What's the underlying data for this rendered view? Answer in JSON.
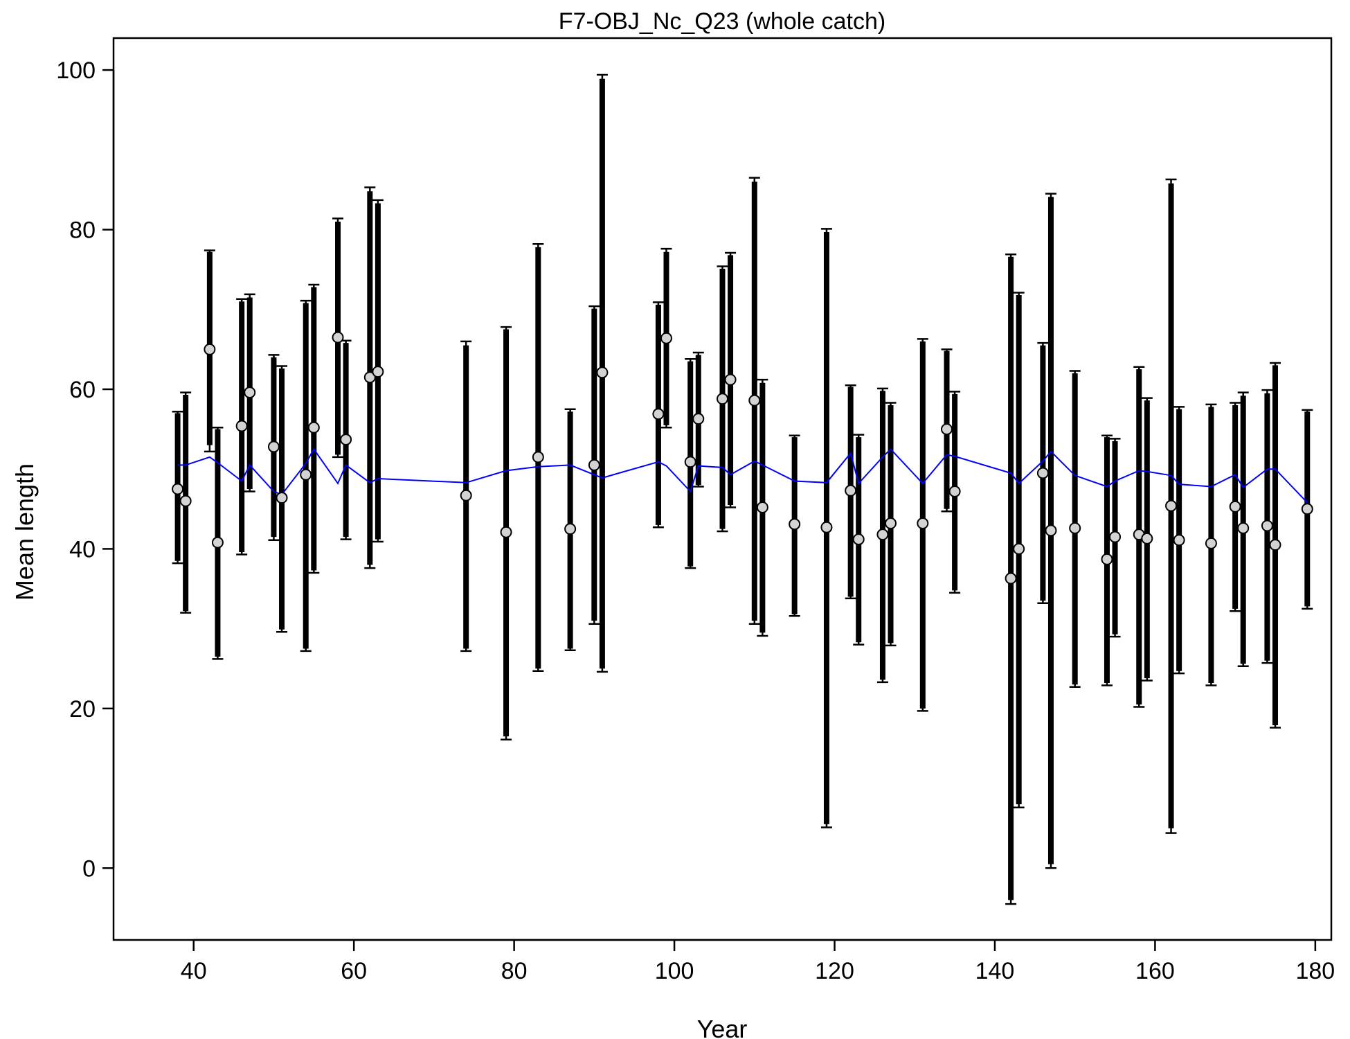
{
  "chart_data": {
    "type": "scatter",
    "title": "F7-OBJ_Nc_Q23 (whole catch)",
    "xlabel": "Year",
    "ylabel": "Mean length",
    "xlim": [
      30,
      182
    ],
    "ylim": [
      -9,
      104
    ],
    "x_ticks": [
      40,
      60,
      80,
      100,
      120,
      140,
      160,
      180
    ],
    "y_ticks": [
      0,
      20,
      40,
      60,
      80,
      100
    ],
    "grid": false,
    "colors": {
      "expected_line": "#0000ff",
      "observed_fill": "#d3d3d3",
      "observed_stroke": "#000000",
      "interval_bar": "#000000"
    },
    "series": [
      {
        "kind": "observed",
        "x": [
          38,
          39,
          42,
          43,
          46,
          47,
          50,
          51,
          54,
          55,
          58,
          59,
          62,
          63,
          74,
          79,
          83,
          87,
          90,
          91,
          98,
          99,
          102,
          103,
          106,
          107,
          110,
          111,
          115,
          119,
          122,
          123,
          126,
          127,
          131,
          134,
          135,
          142,
          143,
          146,
          147,
          150,
          154,
          155,
          158,
          159,
          162,
          163,
          167,
          170,
          171,
          174,
          175,
          179
        ],
        "y": [
          47.5,
          46,
          65,
          40.8,
          55.4,
          59.6,
          52.8,
          46.4,
          49.3,
          55.2,
          66.5,
          53.7,
          61.5,
          62.2,
          46.7,
          42.1,
          51.5,
          42.5,
          50.5,
          62.1,
          56.9,
          66.4,
          50.9,
          56.3,
          58.8,
          61.2,
          58.6,
          45.2,
          43.1,
          42.7,
          47.3,
          41.2,
          41.8,
          43.2,
          43.2,
          55,
          47.2,
          36.3,
          40,
          49.5,
          42.3,
          42.6,
          38.7,
          41.5,
          41.8,
          41.3,
          45.4,
          41.1,
          40.7,
          45.3,
          42.6,
          42.9,
          40.5,
          45
        ],
        "ci_inner": [
          [
            38.5,
            57
          ],
          [
            32.2,
            59.3
          ],
          [
            53,
            77.2
          ],
          [
            26.5,
            55
          ],
          [
            39.6,
            71
          ],
          [
            47.5,
            71.5
          ],
          [
            41.5,
            64
          ],
          [
            29.9,
            62.6
          ],
          [
            27.5,
            70.8
          ],
          [
            37.3,
            72.8
          ],
          [
            51.8,
            81
          ],
          [
            41.5,
            65.8
          ],
          [
            38,
            84.8
          ],
          [
            41.2,
            83.3
          ],
          [
            27.5,
            65.5
          ],
          [
            16.5,
            67.5
          ],
          [
            25,
            77.8
          ],
          [
            27.5,
            57.2
          ],
          [
            31,
            70.1
          ],
          [
            25,
            98.9
          ],
          [
            43,
            70.6
          ],
          [
            55.5,
            77.2
          ],
          [
            37.8,
            63.5
          ],
          [
            48,
            64.3
          ],
          [
            42.5,
            75.1
          ],
          [
            45.5,
            76.8
          ],
          [
            31,
            86
          ],
          [
            29.5,
            60.8
          ],
          [
            31.8,
            54
          ],
          [
            5.5,
            79.7
          ],
          [
            34,
            60.3
          ],
          [
            28.3,
            54
          ],
          [
            23.6,
            59.8
          ],
          [
            28.2,
            58
          ],
          [
            20,
            66
          ],
          [
            45,
            64.8
          ],
          [
            34.8,
            59.4
          ],
          [
            -4,
            76.6
          ],
          [
            8,
            71.8
          ],
          [
            33.5,
            65.5
          ],
          [
            0.5,
            84.1
          ],
          [
            23,
            62
          ],
          [
            23.2,
            54
          ],
          [
            29.3,
            53.5
          ],
          [
            20.5,
            62.5
          ],
          [
            23.8,
            58.6
          ],
          [
            5,
            85.8
          ],
          [
            24.7,
            57.5
          ],
          [
            23.2,
            57.8
          ],
          [
            32.5,
            58
          ],
          [
            25.6,
            59.2
          ],
          [
            26,
            59.5
          ],
          [
            17.9,
            63
          ],
          [
            32.8,
            57.2
          ]
        ],
        "ci_outer": [
          [
            38.2,
            57.2
          ],
          [
            32,
            59.6
          ],
          [
            52.2,
            77.4
          ],
          [
            26.2,
            55.2
          ],
          [
            39.3,
            71.3
          ],
          [
            47.2,
            71.9
          ],
          [
            41.1,
            64.3
          ],
          [
            29.6,
            62.9
          ],
          [
            27.2,
            71.1
          ],
          [
            37,
            73.1
          ],
          [
            51.5,
            81.4
          ],
          [
            41.2,
            66.1
          ],
          [
            37.6,
            85.3
          ],
          [
            40.9,
            83.7
          ],
          [
            27.2,
            66
          ],
          [
            16.1,
            67.8
          ],
          [
            24.7,
            78.2
          ],
          [
            27.3,
            57.5
          ],
          [
            30.6,
            70.4
          ],
          [
            24.6,
            99.4
          ],
          [
            42.7,
            70.9
          ],
          [
            55.2,
            77.6
          ],
          [
            37.6,
            63.8
          ],
          [
            47.8,
            64.6
          ],
          [
            42.2,
            75.4
          ],
          [
            45.2,
            77.1
          ],
          [
            30.6,
            86.5
          ],
          [
            29.1,
            61.2
          ],
          [
            31.6,
            54.2
          ],
          [
            5.1,
            80.1
          ],
          [
            33.8,
            60.5
          ],
          [
            28,
            54.3
          ],
          [
            23.3,
            60.1
          ],
          [
            27.9,
            58.3
          ],
          [
            19.7,
            66.3
          ],
          [
            44.7,
            65
          ],
          [
            34.5,
            59.7
          ],
          [
            -4.5,
            76.9
          ],
          [
            7.6,
            72.1
          ],
          [
            33.2,
            65.8
          ],
          [
            0,
            84.5
          ],
          [
            22.7,
            62.3
          ],
          [
            22.9,
            54.2
          ],
          [
            29,
            53.8
          ],
          [
            20.2,
            62.8
          ],
          [
            23.5,
            58.9
          ],
          [
            4.4,
            86.3
          ],
          [
            24.4,
            57.8
          ],
          [
            22.9,
            58.1
          ],
          [
            32.2,
            58.3
          ],
          [
            25.3,
            59.6
          ],
          [
            25.7,
            59.9
          ],
          [
            17.6,
            63.3
          ],
          [
            32.5,
            57.4
          ]
        ]
      },
      {
        "kind": "expected",
        "x": [
          38,
          39,
          42,
          43,
          46,
          47,
          50,
          51,
          54,
          55,
          58,
          59,
          62,
          63,
          74,
          79,
          83,
          87,
          90,
          91,
          98,
          99,
          102,
          103,
          106,
          107,
          110,
          111,
          115,
          119,
          122,
          123,
          126,
          127,
          131,
          134,
          135,
          142,
          143,
          146,
          147,
          150,
          154,
          155,
          158,
          159,
          162,
          163,
          167,
          170,
          171,
          174,
          175,
          179
        ],
        "y": [
          50.5,
          50.5,
          51.5,
          50.8,
          48.5,
          50.5,
          47.2,
          46.8,
          50.7,
          52.5,
          48.2,
          50.5,
          48.3,
          48.8,
          48.3,
          49.8,
          50.3,
          50.5,
          49.3,
          48.9,
          50.9,
          50.4,
          47.2,
          50.4,
          50.2,
          49.3,
          51,
          50.5,
          48.5,
          48.3,
          52,
          48.2,
          51.5,
          52.5,
          48.2,
          51.8,
          51.6,
          49.5,
          48.2,
          51,
          52.2,
          49.2,
          47.8,
          48.5,
          49.8,
          49.7,
          49.2,
          48.1,
          47.8,
          49.3,
          47.7,
          50,
          50,
          45.8
        ]
      }
    ]
  }
}
